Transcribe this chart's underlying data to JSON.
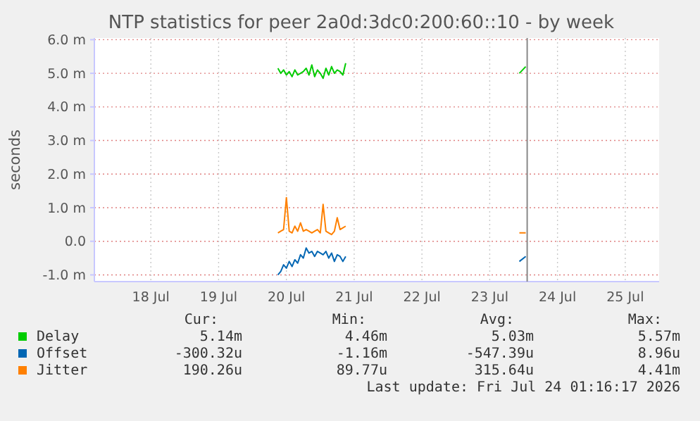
{
  "chart_data": {
    "type": "line",
    "title": "NTP statistics for peer 2a0d:3dc0:200:60::10 - by week",
    "ylabel": "seconds",
    "x": [
      "2026-07-20T09:00",
      "2026-07-20T10:00",
      "2026-07-20T11:00",
      "2026-07-20T12:00",
      "2026-07-20T13:00",
      "2026-07-20T14:00",
      "2026-07-20T15:00",
      "2026-07-20T16:00",
      "2026-07-20T17:00",
      "2026-07-20T18:00",
      "2026-07-20T19:00",
      "2026-07-20T20:00",
      "2026-07-20T21:00",
      "2026-07-20T22:00",
      "2026-07-20T23:00",
      "2026-07-21T00:00",
      "2026-07-21T01:00",
      "2026-07-21T02:00",
      "2026-07-21T03:00",
      "2026-07-21T04:00",
      "2026-07-21T05:00",
      "2026-07-21T06:00",
      "2026-07-21T07:00",
      "2026-07-21T08:00",
      "2026-07-21T09:00",
      "2026-07-22T12:00",
      "2026-07-23T22:30",
      "2026-07-24T00:45"
    ],
    "series": [
      {
        "name": "Delay",
        "color": "#00cc00",
        "values": [
          5.15,
          5.0,
          5.1,
          4.95,
          5.05,
          4.9,
          5.1,
          4.95,
          5.0,
          5.05,
          5.15,
          4.95,
          5.25,
          4.9,
          5.1,
          5.0,
          4.85,
          5.15,
          4.95,
          5.2,
          5.0,
          5.1,
          5.05,
          4.95,
          5.3,
          null,
          5.0,
          5.2
        ]
      },
      {
        "name": "Offset",
        "color": "#0066b3",
        "values": [
          -1.0,
          -0.9,
          -0.7,
          -0.8,
          -0.6,
          -0.75,
          -0.55,
          -0.65,
          -0.4,
          -0.5,
          -0.2,
          -0.35,
          -0.3,
          -0.45,
          -0.3,
          -0.35,
          -0.4,
          -0.3,
          -0.5,
          -0.35,
          -0.6,
          -0.4,
          -0.45,
          -0.6,
          -0.45,
          null,
          -0.6,
          -0.45
        ]
      },
      {
        "name": "Jitter",
        "color": "#ff8000",
        "values": [
          0.25,
          0.3,
          0.35,
          1.3,
          0.3,
          0.25,
          0.45,
          0.3,
          0.55,
          0.3,
          0.35,
          0.3,
          0.25,
          0.3,
          0.35,
          0.25,
          1.1,
          0.3,
          0.25,
          0.2,
          0.3,
          0.7,
          0.35,
          0.4,
          0.45,
          null,
          0.25,
          0.25
        ]
      }
    ],
    "xlim": [
      "2026-07-17T16:00",
      "2026-07-26T00:00"
    ],
    "xticks": [
      {
        "value": "2026-07-18T12:00",
        "label": "18 Jul"
      },
      {
        "value": "2026-07-19T12:00",
        "label": "19 Jul"
      },
      {
        "value": "2026-07-20T12:00",
        "label": "20 Jul"
      },
      {
        "value": "2026-07-21T12:00",
        "label": "21 Jul"
      },
      {
        "value": "2026-07-22T12:00",
        "label": "22 Jul"
      },
      {
        "value": "2026-07-23T12:00",
        "label": "23 Jul"
      },
      {
        "value": "2026-07-24T12:00",
        "label": "24 Jul"
      },
      {
        "value": "2026-07-25T12:00",
        "label": "25 Jul"
      }
    ],
    "ylim": [
      -1.2,
      6.05
    ],
    "yticks": [
      {
        "value": 6,
        "label": "6.0 m"
      },
      {
        "value": 5,
        "label": "5.0 m"
      },
      {
        "value": 4,
        "label": "4.0 m"
      },
      {
        "value": 3,
        "label": "3.0 m"
      },
      {
        "value": 2,
        "label": "2.0 m"
      },
      {
        "value": 1,
        "label": "1.0 m"
      },
      {
        "value": 0,
        "label": "0.0"
      },
      {
        "value": -1,
        "label": "-1.0 m"
      }
    ],
    "ref_lines": [
      {
        "axis": "x",
        "value": "2026-07-24T01:16",
        "label": null,
        "color": "#888888"
      }
    ],
    "grid": true,
    "legend": "bottom",
    "annotations": [
      "Cur:",
      "Min:",
      "Avg:",
      "Max:",
      "5.14m",
      "4.46m",
      "5.03m",
      "5.57m",
      "-300.32u",
      "-1.16m",
      "-547.39u",
      "8.96u",
      "190.26u",
      "89.77u",
      "315.64u",
      "4.41m",
      "Last update: Fri Jul 24 01:16:17 2026"
    ]
  }
}
